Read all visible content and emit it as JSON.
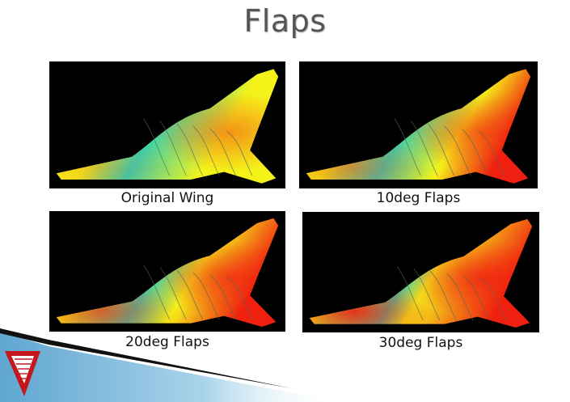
{
  "slide": {
    "title": "Flaps"
  },
  "panels": [
    {
      "caption": "Original Wing",
      "flap_deg": 0
    },
    {
      "caption": "10deg Flaps",
      "flap_deg": 10
    },
    {
      "caption": "20deg Flaps",
      "flap_deg": 20
    },
    {
      "caption": "30deg Flaps",
      "flap_deg": 30
    }
  ],
  "colors": {
    "panel_bg": "#000000",
    "surface_low": "#35d6b0",
    "surface_mid": "#f5f21a",
    "surface_high": "#f02010",
    "footer_blue": "#7fb7d8",
    "logo_red": "#c4161c"
  }
}
